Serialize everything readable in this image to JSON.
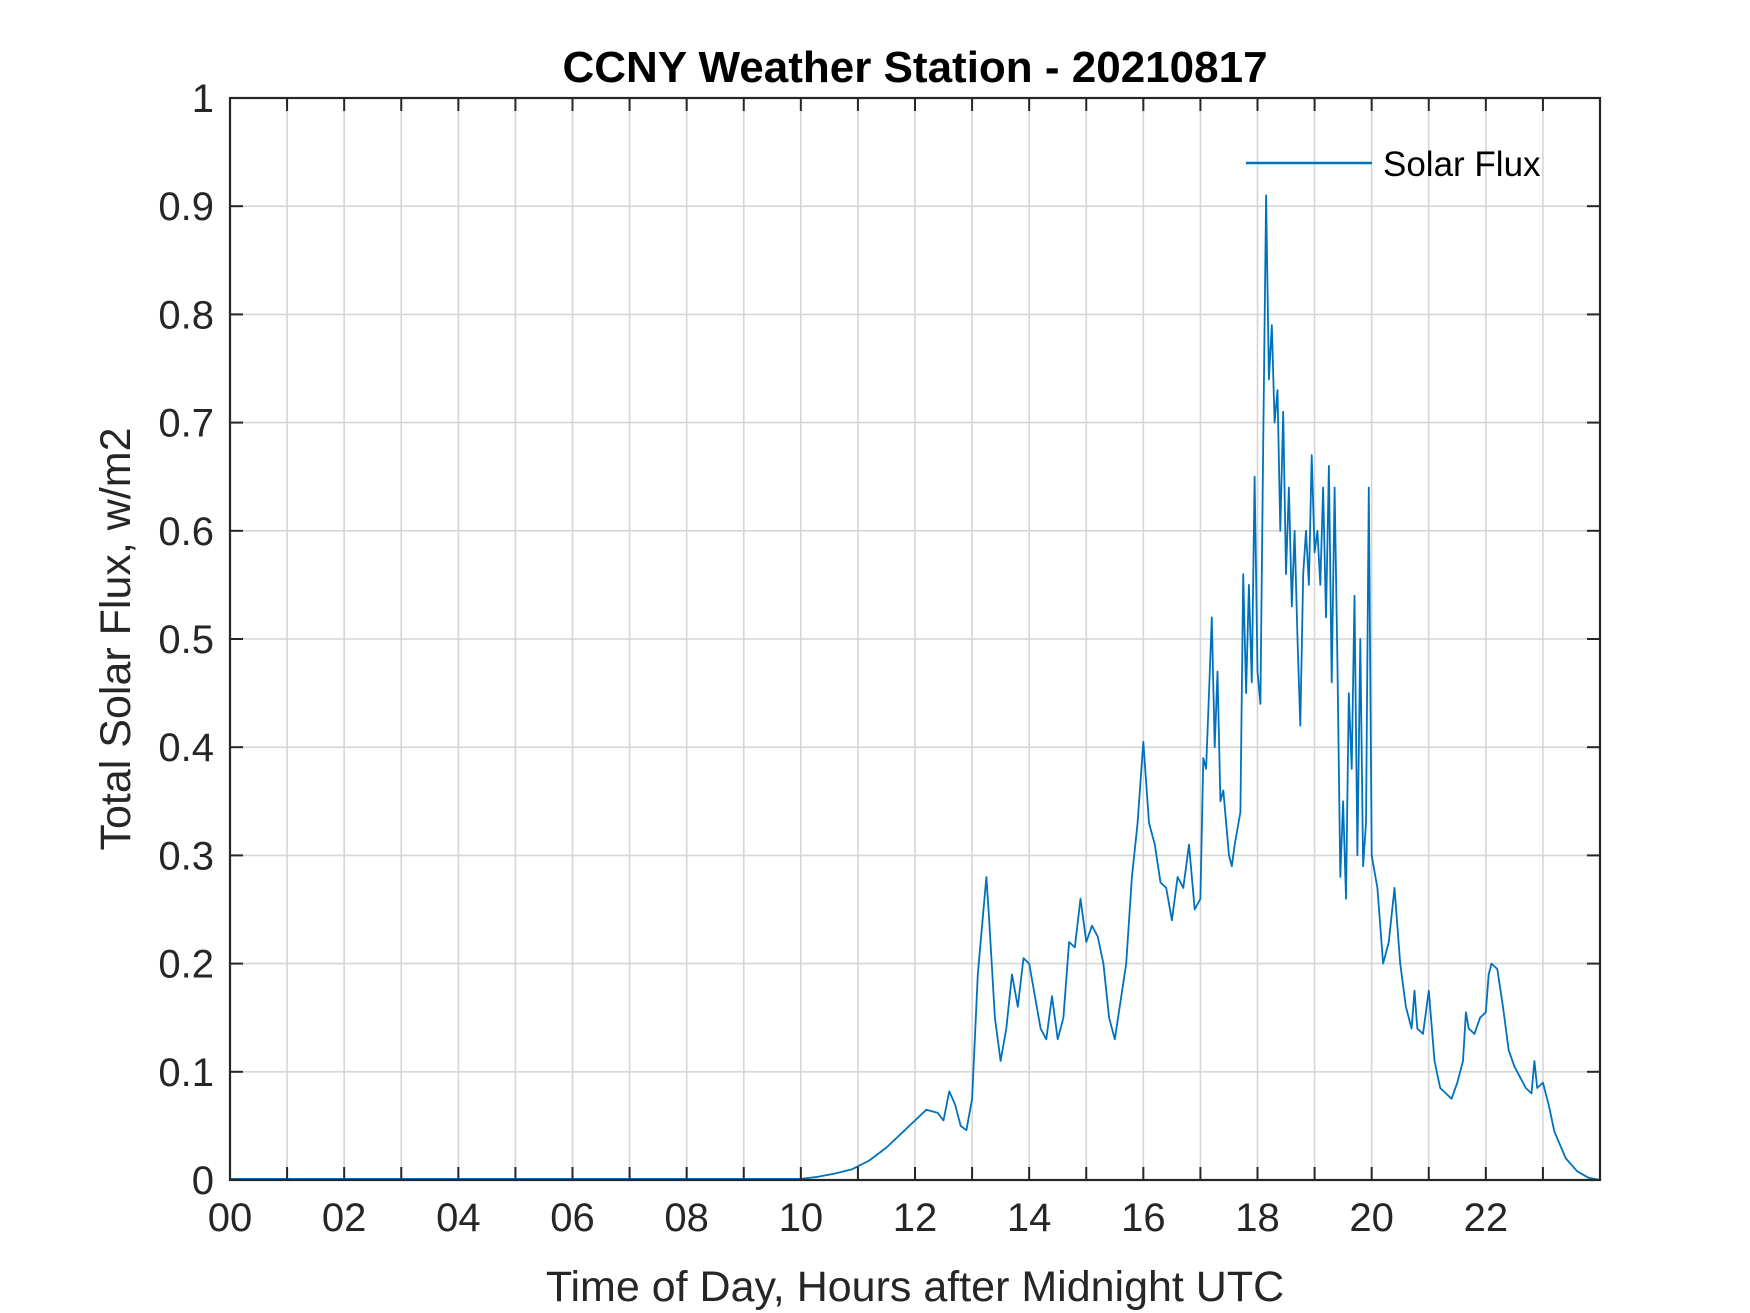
{
  "chart_data": {
    "type": "line",
    "title": "CCNY Weather Station - 20210817",
    "xlabel": "Time of Day, Hours after Midnight UTC",
    "ylabel": "Total Solar Flux, w/m2",
    "xlim": [
      0,
      24
    ],
    "ylim": [
      0,
      1
    ],
    "grid": true,
    "legend_position": "top-right",
    "x_minor_grid_step": 1,
    "xticks": [
      0,
      2,
      4,
      6,
      8,
      10,
      12,
      14,
      16,
      18,
      20,
      22
    ],
    "xtick_labels": [
      "00",
      "02",
      "04",
      "06",
      "08",
      "10",
      "12",
      "14",
      "16",
      "18",
      "20",
      "22"
    ],
    "yticks": [
      0,
      0.1,
      0.2,
      0.3,
      0.4,
      0.5,
      0.6,
      0.7,
      0.8,
      0.9,
      1
    ],
    "ytick_labels": [
      "0",
      "0.1",
      "0.2",
      "0.3",
      "0.4",
      "0.5",
      "0.6",
      "0.7",
      "0.8",
      "0.9",
      "1"
    ],
    "series": [
      {
        "name": "Solar Flux",
        "color": "#0072bd",
        "points": [
          [
            0,
            0.001
          ],
          [
            10.0,
            0.001
          ],
          [
            10.3,
            0.003
          ],
          [
            10.6,
            0.006
          ],
          [
            10.9,
            0.01
          ],
          [
            11.2,
            0.018
          ],
          [
            11.5,
            0.03
          ],
          [
            11.8,
            0.045
          ],
          [
            12.0,
            0.055
          ],
          [
            12.2,
            0.065
          ],
          [
            12.4,
            0.062
          ],
          [
            12.5,
            0.055
          ],
          [
            12.6,
            0.082
          ],
          [
            12.7,
            0.07
          ],
          [
            12.8,
            0.05
          ],
          [
            12.9,
            0.046
          ],
          [
            13.0,
            0.075
          ],
          [
            13.1,
            0.19
          ],
          [
            13.2,
            0.25
          ],
          [
            13.25,
            0.28
          ],
          [
            13.3,
            0.24
          ],
          [
            13.4,
            0.15
          ],
          [
            13.5,
            0.11
          ],
          [
            13.6,
            0.14
          ],
          [
            13.7,
            0.19
          ],
          [
            13.8,
            0.16
          ],
          [
            13.9,
            0.205
          ],
          [
            14.0,
            0.2
          ],
          [
            14.1,
            0.17
          ],
          [
            14.2,
            0.14
          ],
          [
            14.3,
            0.13
          ],
          [
            14.4,
            0.17
          ],
          [
            14.5,
            0.13
          ],
          [
            14.6,
            0.15
          ],
          [
            14.7,
            0.22
          ],
          [
            14.8,
            0.215
          ],
          [
            14.9,
            0.26
          ],
          [
            15.0,
            0.22
          ],
          [
            15.1,
            0.235
          ],
          [
            15.2,
            0.225
          ],
          [
            15.3,
            0.2
          ],
          [
            15.4,
            0.15
          ],
          [
            15.5,
            0.13
          ],
          [
            15.6,
            0.165
          ],
          [
            15.7,
            0.2
          ],
          [
            15.8,
            0.28
          ],
          [
            15.9,
            0.33
          ],
          [
            16.0,
            0.405
          ],
          [
            16.1,
            0.33
          ],
          [
            16.2,
            0.31
          ],
          [
            16.3,
            0.275
          ],
          [
            16.4,
            0.27
          ],
          [
            16.5,
            0.24
          ],
          [
            16.6,
            0.28
          ],
          [
            16.7,
            0.27
          ],
          [
            16.8,
            0.31
          ],
          [
            16.9,
            0.25
          ],
          [
            17.0,
            0.26
          ],
          [
            17.05,
            0.39
          ],
          [
            17.1,
            0.38
          ],
          [
            17.15,
            0.45
          ],
          [
            17.2,
            0.52
          ],
          [
            17.25,
            0.4
          ],
          [
            17.3,
            0.47
          ],
          [
            17.35,
            0.35
          ],
          [
            17.4,
            0.36
          ],
          [
            17.5,
            0.3
          ],
          [
            17.55,
            0.29
          ],
          [
            17.6,
            0.31
          ],
          [
            17.7,
            0.34
          ],
          [
            17.75,
            0.56
          ],
          [
            17.8,
            0.45
          ],
          [
            17.85,
            0.55
          ],
          [
            17.9,
            0.46
          ],
          [
            17.95,
            0.65
          ],
          [
            18.0,
            0.47
          ],
          [
            18.05,
            0.44
          ],
          [
            18.1,
            0.68
          ],
          [
            18.15,
            0.91
          ],
          [
            18.2,
            0.74
          ],
          [
            18.25,
            0.79
          ],
          [
            18.3,
            0.7
          ],
          [
            18.35,
            0.73
          ],
          [
            18.4,
            0.6
          ],
          [
            18.45,
            0.71
          ],
          [
            18.5,
            0.56
          ],
          [
            18.55,
            0.64
          ],
          [
            18.6,
            0.53
          ],
          [
            18.65,
            0.6
          ],
          [
            18.7,
            0.5
          ],
          [
            18.75,
            0.42
          ],
          [
            18.8,
            0.56
          ],
          [
            18.85,
            0.6
          ],
          [
            18.9,
            0.55
          ],
          [
            18.95,
            0.67
          ],
          [
            19.0,
            0.58
          ],
          [
            19.05,
            0.6
          ],
          [
            19.1,
            0.55
          ],
          [
            19.15,
            0.64
          ],
          [
            19.2,
            0.52
          ],
          [
            19.25,
            0.66
          ],
          [
            19.3,
            0.46
          ],
          [
            19.35,
            0.64
          ],
          [
            19.4,
            0.48
          ],
          [
            19.45,
            0.28
          ],
          [
            19.5,
            0.35
          ],
          [
            19.55,
            0.26
          ],
          [
            19.6,
            0.45
          ],
          [
            19.65,
            0.38
          ],
          [
            19.7,
            0.54
          ],
          [
            19.75,
            0.3
          ],
          [
            19.8,
            0.5
          ],
          [
            19.85,
            0.29
          ],
          [
            19.9,
            0.33
          ],
          [
            19.95,
            0.64
          ],
          [
            20.0,
            0.3
          ],
          [
            20.1,
            0.27
          ],
          [
            20.2,
            0.2
          ],
          [
            20.3,
            0.22
          ],
          [
            20.4,
            0.27
          ],
          [
            20.5,
            0.2
          ],
          [
            20.6,
            0.16
          ],
          [
            20.7,
            0.14
          ],
          [
            20.75,
            0.175
          ],
          [
            20.8,
            0.14
          ],
          [
            20.9,
            0.135
          ],
          [
            21.0,
            0.175
          ],
          [
            21.1,
            0.11
          ],
          [
            21.2,
            0.085
          ],
          [
            21.3,
            0.08
          ],
          [
            21.4,
            0.075
          ],
          [
            21.5,
            0.09
          ],
          [
            21.6,
            0.11
          ],
          [
            21.65,
            0.155
          ],
          [
            21.7,
            0.14
          ],
          [
            21.8,
            0.135
          ],
          [
            21.9,
            0.15
          ],
          [
            22.0,
            0.155
          ],
          [
            22.05,
            0.19
          ],
          [
            22.1,
            0.2
          ],
          [
            22.2,
            0.195
          ],
          [
            22.3,
            0.16
          ],
          [
            22.4,
            0.12
          ],
          [
            22.5,
            0.105
          ],
          [
            22.6,
            0.095
          ],
          [
            22.7,
            0.085
          ],
          [
            22.8,
            0.08
          ],
          [
            22.85,
            0.11
          ],
          [
            22.9,
            0.085
          ],
          [
            23.0,
            0.09
          ],
          [
            23.1,
            0.07
          ],
          [
            23.2,
            0.045
          ],
          [
            23.4,
            0.02
          ],
          [
            23.6,
            0.008
          ],
          [
            23.8,
            0.002
          ],
          [
            24.0,
            0.0
          ]
        ]
      }
    ]
  }
}
